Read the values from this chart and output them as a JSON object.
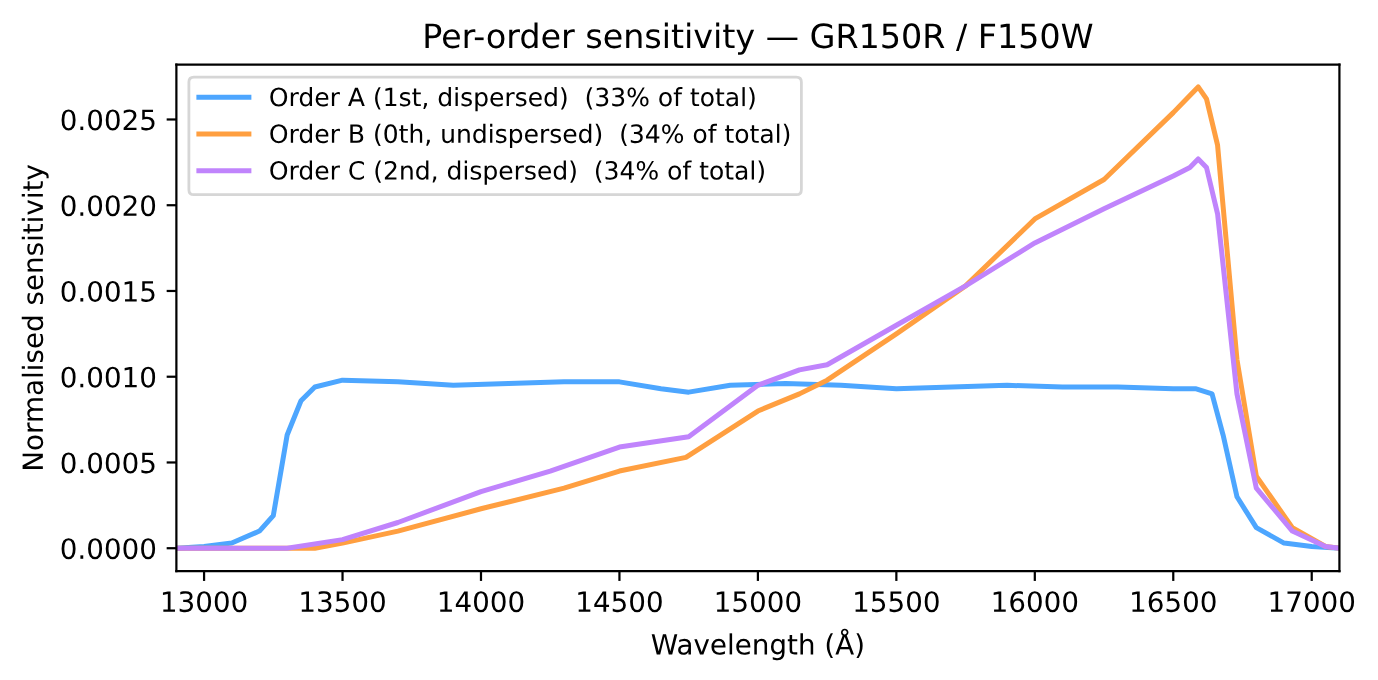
{
  "chart_data": {
    "type": "line",
    "title": "Per-order sensitivity — GR150R / F150W",
    "xlabel": "Wavelength (Å)",
    "ylabel": "Normalised sensitivity",
    "xlim": [
      12900,
      17100
    ],
    "xticks": [
      13000,
      13500,
      14000,
      14500,
      15000,
      15500,
      16000,
      16500,
      17000
    ],
    "ylim": [
      -0.000134,
      0.00282
    ],
    "yticks": [
      {
        "value": 0,
        "label": "0.0000"
      },
      {
        "value": 0.0005,
        "label": "0.0005"
      },
      {
        "value": 0.001,
        "label": "0.0010"
      },
      {
        "value": 0.0015,
        "label": "0.0015"
      },
      {
        "value": 0.002,
        "label": "0.0020"
      },
      {
        "value": 0.0025,
        "label": "0.0025"
      }
    ],
    "grid": false,
    "legend": "top left",
    "marker": "none",
    "line_style": "solid",
    "series": [
      {
        "name": "Order A (1st, dispersed)  (33% of total)",
        "color": "#4da6ff",
        "x": [
          12900,
          13000,
          13100,
          13200,
          13250,
          13300,
          13350,
          13400,
          13500,
          13700,
          13900,
          14100,
          14300,
          14500,
          14650,
          14750,
          14900,
          15100,
          15300,
          15500,
          15700,
          15900,
          16100,
          16300,
          16500,
          16580,
          16640,
          16680,
          16730,
          16800,
          16900,
          17000,
          17100
        ],
        "values": [
          0.0,
          1e-05,
          3e-05,
          0.0001,
          0.00019,
          0.00066,
          0.00086,
          0.00094,
          0.00098,
          0.00097,
          0.00095,
          0.00096,
          0.00097,
          0.00097,
          0.00093,
          0.00091,
          0.00095,
          0.00096,
          0.00095,
          0.00093,
          0.00094,
          0.00095,
          0.00094,
          0.00094,
          0.00093,
          0.00093,
          0.0009,
          0.00066,
          0.0003,
          0.00012,
          3e-05,
          1e-05,
          0.0
        ]
      },
      {
        "name": "Order B (0th, undispersed)  (34% of total)",
        "color": "#ff9f40",
        "x": [
          12900,
          13400,
          13500,
          13700,
          14000,
          14300,
          14500,
          14740,
          15000,
          15150,
          15250,
          15500,
          15750,
          16000,
          16250,
          16500,
          16560,
          16590,
          16620,
          16660,
          16730,
          16800,
          16930,
          17050,
          17100
        ],
        "values": [
          0.0,
          0.0,
          3e-05,
          0.0001,
          0.00023,
          0.00035,
          0.00045,
          0.00053,
          0.0008,
          0.0009,
          0.00098,
          0.00125,
          0.00153,
          0.00192,
          0.00215,
          0.00254,
          0.00264,
          0.00269,
          0.00262,
          0.00235,
          0.0011,
          0.00042,
          0.00012,
          1e-05,
          0.0
        ]
      },
      {
        "name": "Order C (2nd, dispersed)  (34% of total)",
        "color": "#c084fc",
        "x": [
          12900,
          13300,
          13500,
          13700,
          14000,
          14250,
          14500,
          14750,
          15000,
          15150,
          15250,
          15500,
          15750,
          16000,
          16250,
          16500,
          16560,
          16590,
          16620,
          16660,
          16730,
          16800,
          16930,
          17050,
          17100
        ],
        "values": [
          0.0,
          0.0,
          5e-05,
          0.00015,
          0.00033,
          0.00045,
          0.00059,
          0.00065,
          0.00095,
          0.00104,
          0.00107,
          0.0013,
          0.00153,
          0.00178,
          0.00198,
          0.00217,
          0.00222,
          0.00227,
          0.00222,
          0.00195,
          0.0009,
          0.00035,
          0.0001,
          1e-05,
          0.0
        ]
      }
    ]
  }
}
